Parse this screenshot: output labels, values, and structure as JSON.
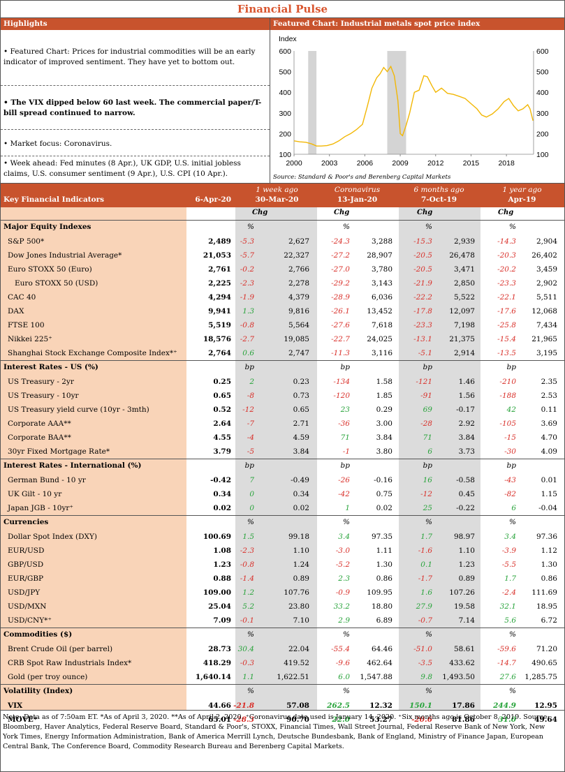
{
  "title": "Financial Pulse",
  "highlights": {
    "header": "Highlights",
    "items": [
      "• Featured Chart: Prices for industrial commodities will be an early indicator of improved sentiment. They have yet to bottom out.",
      "• The VIX dipped below 60 last week. The commercial paper/T-bill spread continued to narrow.",
      "• Market focus: Coronavirus.",
      "• Week ahead: Fed minutes (8 Apr.), UK GDP, U.S. initial jobless claims, U.S. consumer sentiment (9 Apr.), U.S. CPI (10 Apr.)."
    ]
  },
  "featured": {
    "header": "Featured Chart: Industrial metals spot price index",
    "source": "Source: Standard & Poor's and Berenberg Capital Markets"
  },
  "chart_data": {
    "type": "line",
    "ylabel": "Index",
    "ylim": [
      100,
      600
    ],
    "yticks": [
      "100",
      "200",
      "300",
      "400",
      "500",
      "600"
    ],
    "xticks": [
      "2000",
      "2003",
      "2006",
      "2009",
      "2012",
      "2015",
      "2018"
    ],
    "xlim": [
      2000,
      2020.3
    ],
    "recessions": [
      [
        2001.2,
        2001.9
      ],
      [
        2007.9,
        2009.5
      ]
    ],
    "series": [
      {
        "color": "#f2b705",
        "x": [
          2000.0,
          2000.5,
          2001.0,
          2001.5,
          2001.9,
          2002.3,
          2002.8,
          2003.3,
          2003.8,
          2004.3,
          2004.8,
          2005.3,
          2005.8,
          2006.2,
          2006.6,
          2007.0,
          2007.3,
          2007.6,
          2007.9,
          2008.2,
          2008.5,
          2008.8,
          2009.0,
          2009.2,
          2009.5,
          2009.8,
          2010.2,
          2010.6,
          2011.0,
          2011.3,
          2011.7,
          2012.0,
          2012.5,
          2013.0,
          2013.5,
          2014.0,
          2014.5,
          2015.0,
          2015.5,
          2015.9,
          2016.3,
          2016.8,
          2017.3,
          2017.8,
          2018.2,
          2018.6,
          2019.0,
          2019.4,
          2019.8,
          2020.0,
          2020.25
        ],
        "values": [
          165,
          160,
          158,
          150,
          140,
          140,
          142,
          150,
          165,
          185,
          200,
          220,
          245,
          330,
          420,
          470,
          490,
          520,
          500,
          525,
          480,
          360,
          200,
          190,
          240,
          300,
          400,
          410,
          480,
          475,
          430,
          400,
          420,
          395,
          390,
          380,
          370,
          345,
          320,
          290,
          280,
          295,
          320,
          355,
          370,
          335,
          310,
          320,
          340,
          320,
          262
        ]
      }
    ]
  },
  "table": {
    "header_label": "Key Financial Indicators",
    "columns": [
      {
        "line1": "",
        "line2": "6-Apr-20"
      },
      {
        "line1": "1 week ago",
        "line2": "30-Mar-20"
      },
      {
        "line1": "Coronavirus",
        "line2": "13-Jan-20"
      },
      {
        "line1": "6 months ago",
        "line2": "7-Oct-19"
      },
      {
        "line1": "1 year ago",
        "line2": "Apr-19"
      }
    ],
    "chg_label": "Chg",
    "sections": [
      {
        "name": "Major Equity Indexes",
        "unit": "%",
        "rows": [
          {
            "label": "S&P 500*",
            "v": [
              "2,489",
              "-5.3",
              "2,627",
              "-24.3",
              "3,288",
              "-15.3",
              "2,939",
              "-14.3",
              "2,904"
            ]
          },
          {
            "label": "Dow Jones Industrial Average*",
            "v": [
              "21,053",
              "-5.7",
              "22,327",
              "-27.2",
              "28,907",
              "-20.5",
              "26,478",
              "-20.3",
              "26,402"
            ]
          },
          {
            "label": "Euro STOXX 50 (Euro)",
            "v": [
              "2,761",
              "-0.2",
              "2,766",
              "-27.0",
              "3,780",
              "-20.5",
              "3,471",
              "-20.2",
              "3,459"
            ]
          },
          {
            "label": "Euro STOXX 50 (USD)",
            "indent": true,
            "v": [
              "2,225",
              "-2.3",
              "2,278",
              "-29.2",
              "3,143",
              "-21.9",
              "2,850",
              "-23.3",
              "2,902"
            ]
          },
          {
            "label": "CAC 40",
            "v": [
              "4,294",
              "-1.9",
              "4,379",
              "-28.9",
              "6,036",
              "-22.2",
              "5,522",
              "-22.1",
              "5,511"
            ]
          },
          {
            "label": "DAX",
            "v": [
              "9,941",
              "1.3",
              "9,816",
              "-26.1",
              "13,452",
              "-17.8",
              "12,097",
              "-17.6",
              "12,068"
            ]
          },
          {
            "label": "FTSE 100",
            "v": [
              "5,519",
              "-0.8",
              "5,564",
              "-27.6",
              "7,618",
              "-23.3",
              "7,198",
              "-25.8",
              "7,434"
            ]
          },
          {
            "label": "Nikkei 225⁺",
            "v": [
              "18,576",
              "-2.7",
              "19,085",
              "-22.7",
              "24,025",
              "-13.1",
              "21,375",
              "-15.4",
              "21,965"
            ]
          },
          {
            "label": "Shanghai Stock Exchange Composite Index*⁺",
            "v": [
              "2,764",
              "0.6",
              "2,747",
              "-11.3",
              "3,116",
              "-5.1",
              "2,914",
              "-13.5",
              "3,195"
            ]
          }
        ]
      },
      {
        "name": "Interest Rates - US (%)",
        "unit": "bp",
        "rows": [
          {
            "label": "US Treasury - 2yr",
            "v": [
              "0.25",
              "2",
              "0.23",
              "-134",
              "1.58",
              "-121",
              "1.46",
              "-210",
              "2.35"
            ]
          },
          {
            "label": "US Treasury - 10yr",
            "v": [
              "0.65",
              "-8",
              "0.73",
              "-120",
              "1.85",
              "-91",
              "1.56",
              "-188",
              "2.53"
            ]
          },
          {
            "label": "US Treasury yield curve (10yr - 3mth)",
            "v": [
              "0.52",
              "-12",
              "0.65",
              "23",
              "0.29",
              "69",
              "-0.17",
              "42",
              "0.11"
            ]
          },
          {
            "label": "Corporate AAA**",
            "v": [
              "2.64",
              "-7",
              "2.71",
              "-36",
              "3.00",
              "-28",
              "2.92",
              "-105",
              "3.69"
            ]
          },
          {
            "label": "Corporate BAA**",
            "v": [
              "4.55",
              "-4",
              "4.59",
              "71",
              "3.84",
              "71",
              "3.84",
              "-15",
              "4.70"
            ]
          },
          {
            "label": "30yr Fixed Mortgage Rate*",
            "v": [
              "3.79",
              "-5",
              "3.84",
              "-1",
              "3.80",
              "6",
              "3.73",
              "-30",
              "4.09"
            ]
          }
        ]
      },
      {
        "name": "Interest Rates - International (%)",
        "unit": "bp",
        "rows": [
          {
            "label": "German Bund - 10 yr",
            "v": [
              "-0.42",
              "7",
              "-0.49",
              "-26",
              "-0.16",
              "16",
              "-0.58",
              "-43",
              "0.01"
            ]
          },
          {
            "label": "UK Gilt - 10 yr",
            "v": [
              "0.34",
              "0",
              "0.34",
              "-42",
              "0.75",
              "-12",
              "0.45",
              "-82",
              "1.15"
            ]
          },
          {
            "label": "Japan JGB - 10yr⁺",
            "v": [
              "0.02",
              "0",
              "0.02",
              "1",
              "0.02",
              "25",
              "-0.22",
              "6",
              "-0.04"
            ]
          }
        ]
      },
      {
        "name": "Currencies",
        "unit": "%",
        "rows": [
          {
            "label": "Dollar Spot Index (DXY)",
            "v": [
              "100.69",
              "1.5",
              "99.18",
              "3.4",
              "97.35",
              "1.7",
              "98.97",
              "3.4",
              "97.36"
            ]
          },
          {
            "label": "EUR/USD",
            "v": [
              "1.08",
              "-2.3",
              "1.10",
              "-3.0",
              "1.11",
              "-1.6",
              "1.10",
              "-3.9",
              "1.12"
            ]
          },
          {
            "label": "GBP/USD",
            "v": [
              "1.23",
              "-0.8",
              "1.24",
              "-5.2",
              "1.30",
              "0.1",
              "1.23",
              "-5.5",
              "1.30"
            ]
          },
          {
            "label": "EUR/GBP",
            "v": [
              "0.88",
              "-1.4",
              "0.89",
              "2.3",
              "0.86",
              "-1.7",
              "0.89",
              "1.7",
              "0.86"
            ]
          },
          {
            "label": "USD/JPY",
            "v": [
              "109.00",
              "1.2",
              "107.76",
              "-0.9",
              "109.95",
              "1.6",
              "107.26",
              "-2.4",
              "111.69"
            ]
          },
          {
            "label": "USD/MXN",
            "v": [
              "25.04",
              "5.2",
              "23.80",
              "33.2",
              "18.80",
              "27.9",
              "19.58",
              "32.1",
              "18.95"
            ]
          },
          {
            "label": "USD/CNY*⁺",
            "v": [
              "7.09",
              "-0.1",
              "7.10",
              "2.9",
              "6.89",
              "-0.7",
              "7.14",
              "5.6",
              "6.72"
            ]
          }
        ]
      },
      {
        "name": "Commodities ($)",
        "unit": "%",
        "rows": [
          {
            "label": "Brent Crude Oil (per barrel)",
            "v": [
              "28.73",
              "30.4",
              "22.04",
              "-55.4",
              "64.46",
              "-51.0",
              "58.61",
              "-59.6",
              "71.20"
            ]
          },
          {
            "label": "CRB Spot Raw Industrials Index*",
            "v": [
              "418.29",
              "-0.3",
              "419.52",
              "-9.6",
              "462.64",
              "-3.5",
              "433.62",
              "-14.7",
              "490.65"
            ]
          },
          {
            "label": "Gold (per troy ounce)",
            "v": [
              "1,640.14",
              "1.1",
              "1,622.51",
              "6.0",
              "1,547.88",
              "9.8",
              "1,493.50",
              "27.6",
              "1,285.75"
            ]
          }
        ]
      },
      {
        "name": "Volatility (Index)",
        "unit": "%",
        "bold": true,
        "rows": [
          {
            "label": "VIX",
            "v": [
              "44.66",
              "-21.8",
              "57.08",
              "262.5",
              "12.32",
              "150.1",
              "17.86",
              "244.9",
              "12.95"
            ]
          },
          {
            "label": "MOVE*",
            "v": [
              "65.01",
              "-28.3",
              "90.70",
              "22.0",
              "53.27",
              "-20.6",
              "81.86",
              "31.0",
              "49.64"
            ]
          }
        ]
      }
    ]
  },
  "note": "Note: Data as of 7:50am ET. *As of April 3, 2020. **As of April 2, 2020. ⁺Coronavirus date used is January 14, 2020. ⁺Six months ago is October 8, 2019. Source: Bloomberg, Haver Analytics, Federal Reserve Board, Standard & Poor's, STOXX, Financial Times, Wall Street Journal, Federal Reserve Bank of New York, New York Times, Energy Information Administration, Bank of America Merrill Lynch, Deutsche Bundesbank, Bank of England, Ministry of Finance Japan, European Central Bank, The Conference Board, Commodity Research Bureau and Berenberg Capital Markets."
}
